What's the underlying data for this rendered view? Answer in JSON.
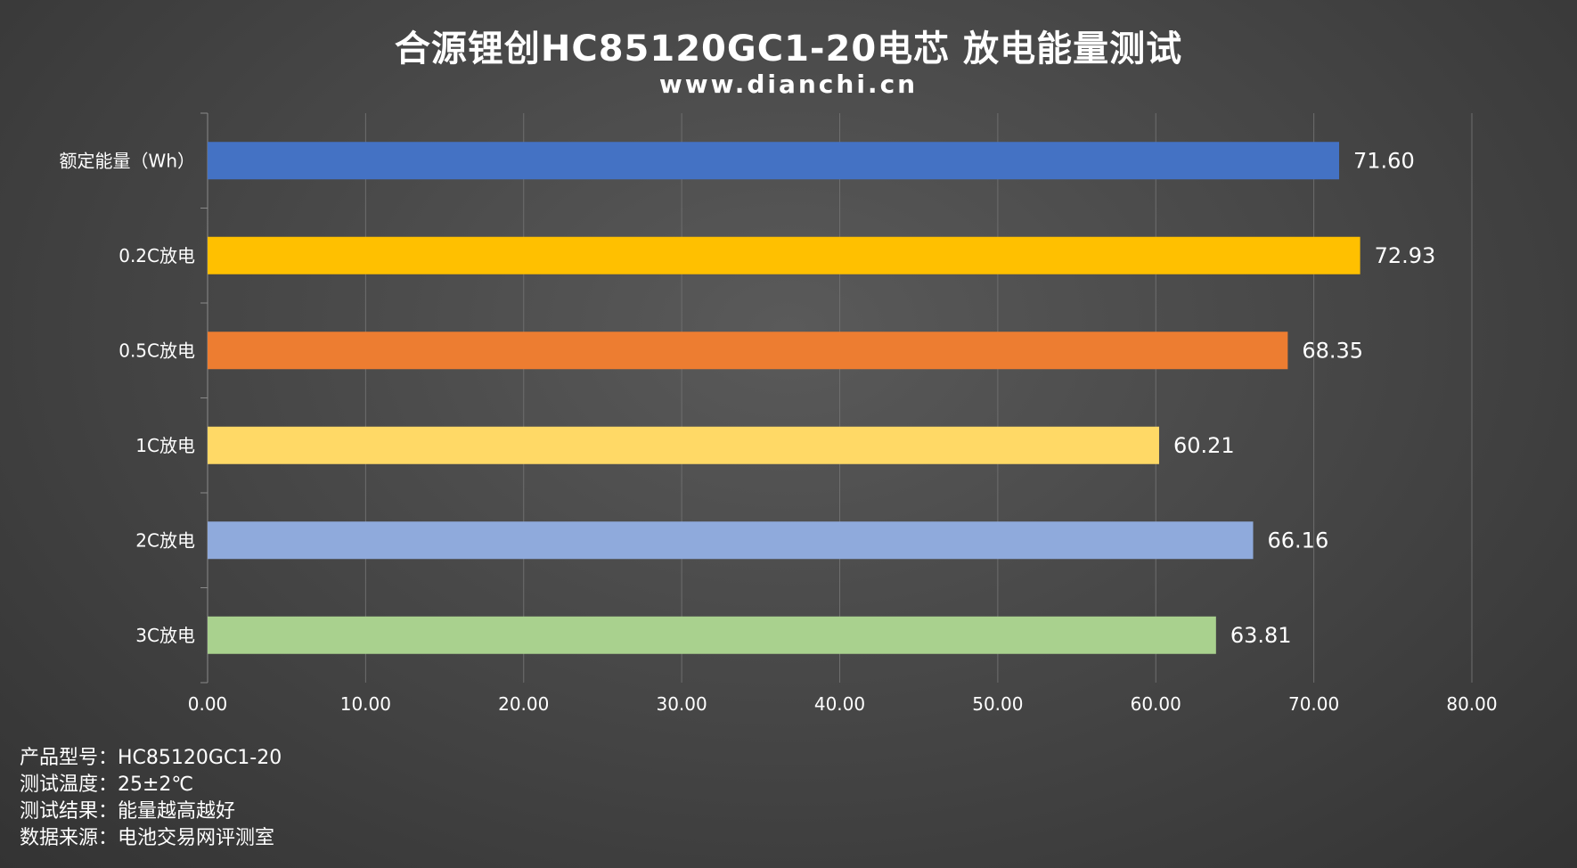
{
  "title": "合源锂创HC85120GC1-20电芯 放电能量测试",
  "subtitle": "www.dianchi.cn",
  "chart_data": {
    "type": "bar",
    "orientation": "horizontal",
    "title": "合源锂创HC85120GC1-20电芯 放电能量测试",
    "subtitle": "www.dianchi.cn",
    "categories": [
      "额定能量（Wh）",
      "0.2C放电",
      "0.5C放电",
      "1C放电",
      "2C放电",
      "3C放电"
    ],
    "values": [
      71.6,
      72.93,
      68.35,
      60.21,
      66.16,
      63.81
    ],
    "value_labels": [
      "71.60",
      "72.93",
      "68.35",
      "60.21",
      "66.16",
      "63.81"
    ],
    "bar_colors": [
      "#4472C4",
      "#FFC000",
      "#ED7D31",
      "#FFD966",
      "#8FAADC",
      "#A9D18E"
    ],
    "xlim": [
      0,
      80
    ],
    "xticks": [
      0,
      10,
      20,
      30,
      40,
      50,
      60,
      70,
      80
    ],
    "xtick_labels": [
      "0.00",
      "10.00",
      "20.00",
      "30.00",
      "40.00",
      "50.00",
      "60.00",
      "70.00",
      "80.00"
    ],
    "xlabel": "",
    "ylabel": "",
    "grid": true,
    "legend": "none"
  },
  "notes": [
    "产品型号：HC85120GC1-20",
    "测试温度：25±2℃",
    "测试结果：能量越高越好",
    "数据来源：电池交易网评测室"
  ]
}
